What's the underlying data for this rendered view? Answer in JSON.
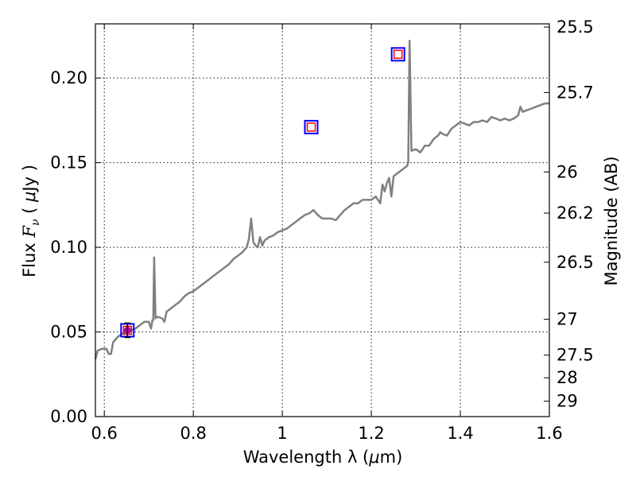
{
  "chart_data": {
    "type": "line",
    "xlabel_prefix": "Wavelength  λ (",
    "xlabel_unit_mu": "μ",
    "xlabel_suffix": "m)",
    "ylabel_prefix": "Flux  ",
    "ylabel_var": "F",
    "ylabel_sub": "ν",
    "ylabel_mid": "  ( ",
    "ylabel_mu": "μ",
    "ylabel_suffix": "Jy )",
    "y2label": "Magnitude (AB)",
    "xlim": [
      0.58,
      1.6
    ],
    "ylim": [
      0.0,
      0.232
    ],
    "xticks": [
      {
        "value": 0.6,
        "label": "0.6"
      },
      {
        "value": 0.8,
        "label": "0.8"
      },
      {
        "value": 1.0,
        "label": "1"
      },
      {
        "value": 1.2,
        "label": "1.2"
      },
      {
        "value": 1.4,
        "label": "1.4"
      },
      {
        "value": 1.6,
        "label": "1.6"
      }
    ],
    "yticks": [
      {
        "value": 0.0,
        "label": "0.00"
      },
      {
        "value": 0.05,
        "label": "0.05"
      },
      {
        "value": 0.1,
        "label": "0.10"
      },
      {
        "value": 0.15,
        "label": "0.15"
      },
      {
        "value": 0.2,
        "label": "0.20"
      }
    ],
    "y2ticks": [
      {
        "flux": 0.2301,
        "label": "25.5"
      },
      {
        "flux": 0.1914,
        "label": "25.7"
      },
      {
        "flux": 0.1445,
        "label": "26"
      },
      {
        "flux": 0.1202,
        "label": "26.2"
      },
      {
        "flux": 0.0912,
        "label": "26.5"
      },
      {
        "flux": 0.0575,
        "label": "27"
      },
      {
        "flux": 0.0363,
        "label": "27.5"
      },
      {
        "flux": 0.0229,
        "label": "28"
      },
      {
        "flux": 0.0091,
        "label": "29"
      }
    ],
    "series": [
      {
        "name": "spectrum",
        "color": "#808080",
        "points": [
          [
            0.58,
            0.034
          ],
          [
            0.585,
            0.039
          ],
          [
            0.595,
            0.04
          ],
          [
            0.605,
            0.04
          ],
          [
            0.61,
            0.037
          ],
          [
            0.615,
            0.037
          ],
          [
            0.62,
            0.044
          ],
          [
            0.63,
            0.047
          ],
          [
            0.64,
            0.049
          ],
          [
            0.65,
            0.05
          ],
          [
            0.66,
            0.051
          ],
          [
            0.67,
            0.052
          ],
          [
            0.68,
            0.054
          ],
          [
            0.69,
            0.056
          ],
          [
            0.7,
            0.056
          ],
          [
            0.705,
            0.052
          ],
          [
            0.708,
            0.057
          ],
          [
            0.71,
            0.057
          ],
          [
            0.712,
            0.094
          ],
          [
            0.715,
            0.058
          ],
          [
            0.72,
            0.059
          ],
          [
            0.73,
            0.058
          ],
          [
            0.735,
            0.056
          ],
          [
            0.74,
            0.062
          ],
          [
            0.75,
            0.064
          ],
          [
            0.76,
            0.066
          ],
          [
            0.77,
            0.068
          ],
          [
            0.78,
            0.071
          ],
          [
            0.79,
            0.073
          ],
          [
            0.8,
            0.074
          ],
          [
            0.81,
            0.076
          ],
          [
            0.82,
            0.078
          ],
          [
            0.83,
            0.08
          ],
          [
            0.84,
            0.082
          ],
          [
            0.85,
            0.084
          ],
          [
            0.86,
            0.086
          ],
          [
            0.87,
            0.088
          ],
          [
            0.88,
            0.09
          ],
          [
            0.89,
            0.093
          ],
          [
            0.9,
            0.095
          ],
          [
            0.91,
            0.097
          ],
          [
            0.92,
            0.1
          ],
          [
            0.925,
            0.105
          ],
          [
            0.93,
            0.117
          ],
          [
            0.935,
            0.103
          ],
          [
            0.94,
            0.101
          ],
          [
            0.945,
            0.1
          ],
          [
            0.95,
            0.106
          ],
          [
            0.955,
            0.101
          ],
          [
            0.96,
            0.104
          ],
          [
            0.97,
            0.106
          ],
          [
            0.98,
            0.107
          ],
          [
            0.99,
            0.109
          ],
          [
            1.0,
            0.11
          ],
          [
            1.01,
            0.111
          ],
          [
            1.02,
            0.113
          ],
          [
            1.03,
            0.115
          ],
          [
            1.04,
            0.117
          ],
          [
            1.05,
            0.119
          ],
          [
            1.06,
            0.12
          ],
          [
            1.07,
            0.122
          ],
          [
            1.08,
            0.119
          ],
          [
            1.09,
            0.117
          ],
          [
            1.1,
            0.117
          ],
          [
            1.11,
            0.117
          ],
          [
            1.12,
            0.116
          ],
          [
            1.13,
            0.119
          ],
          [
            1.14,
            0.122
          ],
          [
            1.15,
            0.124
          ],
          [
            1.16,
            0.126
          ],
          [
            1.17,
            0.126
          ],
          [
            1.18,
            0.128
          ],
          [
            1.19,
            0.128
          ],
          [
            1.2,
            0.128
          ],
          [
            1.21,
            0.13
          ],
          [
            1.22,
            0.126
          ],
          [
            1.225,
            0.137
          ],
          [
            1.23,
            0.133
          ],
          [
            1.235,
            0.138
          ],
          [
            1.24,
            0.141
          ],
          [
            1.245,
            0.13
          ],
          [
            1.25,
            0.142
          ],
          [
            1.26,
            0.144
          ],
          [
            1.27,
            0.146
          ],
          [
            1.28,
            0.148
          ],
          [
            1.283,
            0.15
          ],
          [
            1.286,
            0.222
          ],
          [
            1.29,
            0.157
          ],
          [
            1.3,
            0.158
          ],
          [
            1.31,
            0.156
          ],
          [
            1.32,
            0.16
          ],
          [
            1.33,
            0.16
          ],
          [
            1.34,
            0.164
          ],
          [
            1.35,
            0.166
          ],
          [
            1.355,
            0.168
          ],
          [
            1.36,
            0.167
          ],
          [
            1.37,
            0.166
          ],
          [
            1.38,
            0.17
          ],
          [
            1.39,
            0.172
          ],
          [
            1.4,
            0.174
          ],
          [
            1.41,
            0.173
          ],
          [
            1.42,
            0.172
          ],
          [
            1.43,
            0.174
          ],
          [
            1.44,
            0.174
          ],
          [
            1.45,
            0.175
          ],
          [
            1.46,
            0.174
          ],
          [
            1.47,
            0.177
          ],
          [
            1.48,
            0.176
          ],
          [
            1.49,
            0.175
          ],
          [
            1.5,
            0.176
          ],
          [
            1.51,
            0.175
          ],
          [
            1.52,
            0.176
          ],
          [
            1.53,
            0.178
          ],
          [
            1.535,
            0.183
          ],
          [
            1.54,
            0.18
          ],
          [
            1.55,
            0.181
          ],
          [
            1.56,
            0.182
          ],
          [
            1.57,
            0.183
          ],
          [
            1.58,
            0.184
          ],
          [
            1.59,
            0.185
          ],
          [
            1.6,
            0.185
          ]
        ]
      }
    ],
    "photometry": [
      {
        "x": 0.652,
        "y": 0.051,
        "outer": "#0000ff",
        "inner": "#ff0000",
        "errbar": true,
        "fill": "#b000b0"
      },
      {
        "x": 1.065,
        "y": 0.171,
        "outer": "#0000ff",
        "inner": "#ff0000",
        "errbar": false,
        "fill": "none"
      },
      {
        "x": 1.26,
        "y": 0.214,
        "outer": "#0000ff",
        "inner": "#ff0000",
        "errbar": false,
        "fill": "none"
      }
    ]
  }
}
